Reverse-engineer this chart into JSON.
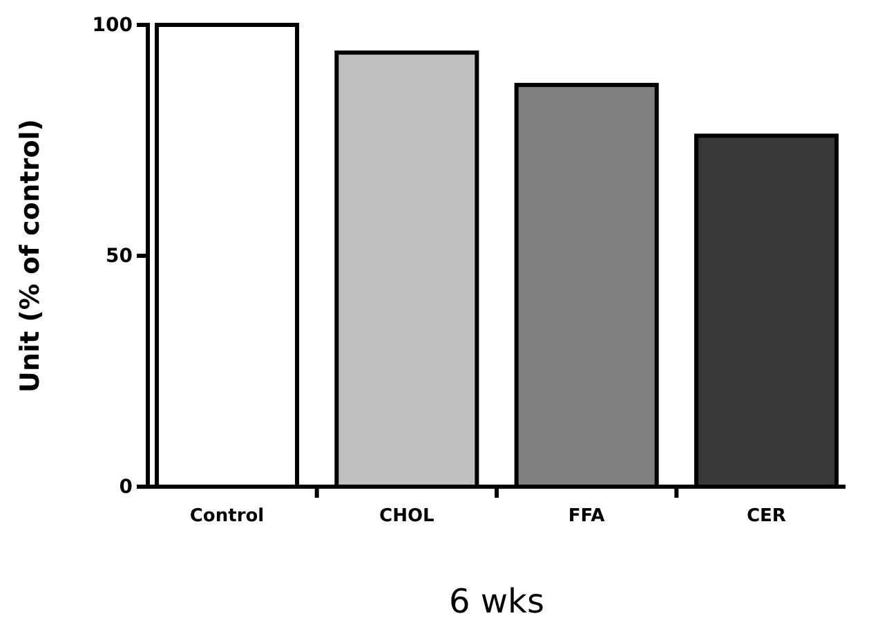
{
  "chart_data": {
    "type": "bar",
    "xlabel": "6 wks",
    "ylabel": "Unit (% of control)",
    "categories": [
      "Control",
      "CHOL",
      "FFA",
      "CER"
    ],
    "values": [
      100,
      94,
      87,
      76
    ],
    "colors": [
      "#ffffff",
      "#c0c0c0",
      "#808080",
      "#383838"
    ],
    "ylim": [
      0,
      100
    ],
    "yticks": [
      0,
      50,
      100
    ],
    "grid": false
  }
}
